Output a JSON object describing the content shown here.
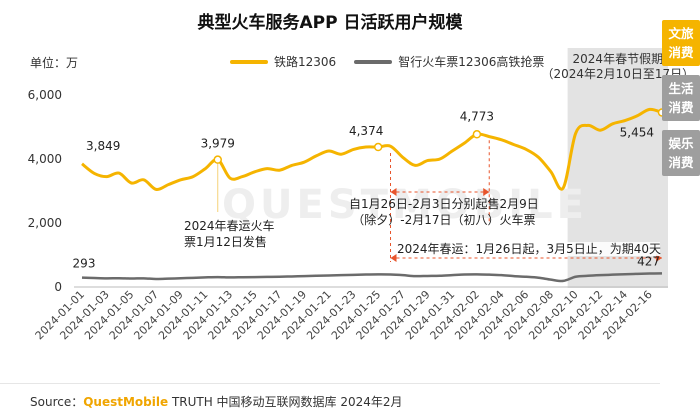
{
  "colors": {
    "rail": "#f5b400",
    "smart": "#6b6b6b",
    "tab_active": "#f5b400",
    "tab_inactive": "#9e9e9e",
    "annotation": "#e8542b",
    "shade": "#e3e3e3"
  },
  "header": {
    "title": "典型火车服务APP 日活跃用户规模",
    "unit": "单位：万"
  },
  "legend": [
    {
      "label": "铁路12306"
    },
    {
      "label": "智行火车票12306高铁抢票"
    }
  ],
  "side_tabs": [
    {
      "label_lines": [
        "文旅",
        "消费"
      ],
      "active": true
    },
    {
      "label_lines": [
        "生活",
        "消费"
      ],
      "active": false
    },
    {
      "label_lines": [
        "娱乐",
        "消费"
      ],
      "active": false
    }
  ],
  "chart_data": {
    "type": "line",
    "x": [
      "2024-01-01",
      "2024-01-02",
      "2024-01-03",
      "2024-01-04",
      "2024-01-05",
      "2024-01-06",
      "2024-01-07",
      "2024-01-08",
      "2024-01-09",
      "2024-01-10",
      "2024-01-11",
      "2024-01-12",
      "2024-01-13",
      "2024-01-14",
      "2024-01-15",
      "2024-01-16",
      "2024-01-17",
      "2024-01-18",
      "2024-01-19",
      "2024-01-20",
      "2024-01-21",
      "2024-01-22",
      "2024-01-23",
      "2024-01-24",
      "2024-01-25",
      "2024-01-26",
      "2024-01-27",
      "2024-01-28",
      "2024-01-29",
      "2024-01-30",
      "2024-01-31",
      "2024-02-01",
      "2024-02-02",
      "2024-02-03",
      "2024-02-04",
      "2024-02-05",
      "2024-02-06",
      "2024-02-07",
      "2024-02-08",
      "2024-02-09",
      "2024-02-10",
      "2024-02-11",
      "2024-02-12",
      "2024-02-13",
      "2024-02-14",
      "2024-02-15",
      "2024-02-16",
      "2024-02-17"
    ],
    "x_tick_labels": [
      "2024-01-01",
      "2024-01-03",
      "2024-01-05",
      "2024-01-07",
      "2024-01-09",
      "2024-01-11",
      "2024-01-13",
      "2024-01-15",
      "2024-01-17",
      "2024-01-19",
      "2024-01-21",
      "2024-01-23",
      "2024-01-25",
      "2024-01-27",
      "2024-01-29",
      "2024-01-31",
      "2024-02-02",
      "2024-02-04",
      "2024-02-06",
      "2024-02-08",
      "2024-02-10",
      "2024-02-12",
      "2024-02-14",
      "2024-02-16"
    ],
    "ylim": [
      0,
      6000
    ],
    "y_ticks": [
      0,
      2000,
      4000,
      6000
    ],
    "y_tick_labels": [
      "0",
      "2,000",
      "4,000",
      "6,000"
    ],
    "grid": false,
    "series": [
      {
        "name": "铁路12306",
        "values": [
          3849,
          3550,
          3450,
          3560,
          3250,
          3350,
          3050,
          3200,
          3350,
          3450,
          3700,
          3979,
          3400,
          3450,
          3600,
          3700,
          3650,
          3800,
          3900,
          4100,
          4250,
          4150,
          4300,
          4374,
          4374,
          4400,
          4050,
          3800,
          3950,
          4000,
          4250,
          4500,
          4773,
          4700,
          4600,
          4450,
          4300,
          4050,
          3600,
          3100,
          4800,
          5050,
          4900,
          5100,
          5200,
          5350,
          5550,
          5454
        ]
      },
      {
        "name": "智行火车票12306高铁抢票",
        "values": [
          293,
          280,
          270,
          275,
          265,
          270,
          250,
          260,
          275,
          285,
          300,
          310,
          300,
          305,
          310,
          315,
          320,
          330,
          340,
          350,
          360,
          370,
          380,
          390,
          395,
          390,
          370,
          340,
          345,
          350,
          370,
          390,
          395,
          385,
          370,
          340,
          320,
          290,
          230,
          190,
          320,
          350,
          370,
          385,
          400,
          410,
          420,
          427
        ]
      }
    ],
    "data_labels": [
      {
        "series": 0,
        "index": 0,
        "text": "3,849"
      },
      {
        "series": 0,
        "index": 11,
        "text": "3,979"
      },
      {
        "series": 0,
        "index": 24,
        "text": "4,374"
      },
      {
        "series": 0,
        "index": 32,
        "text": "4,773"
      },
      {
        "series": 0,
        "index": 47,
        "text": "5,454"
      },
      {
        "series": 1,
        "index": 0,
        "text": "293"
      },
      {
        "series": 1,
        "index": 47,
        "text": "427"
      }
    ],
    "shaded_period": {
      "from": "2024-02-10",
      "to": "2024-02-17",
      "label_lines": [
        "2024年春节假期",
        "（2024年2月10日至17日）"
      ]
    },
    "annotations": [
      {
        "at": "2024-01-12",
        "lines": [
          "2024年春运火车",
          "票1月12日发售"
        ]
      },
      {
        "from": "2024-01-26",
        "to": "2024-02-03",
        "lines": [
          "自1月26日-2月3日分别起售2月9日",
          "（除夕）-2月17日（初八）火车票"
        ]
      },
      {
        "from": "2024-01-26",
        "to": "2024-02-17",
        "lines": [
          "2024年春运：1月26日起，3月5日止，为期40天"
        ]
      }
    ]
  },
  "watermark": "QUESTMOBILE",
  "source": {
    "prefix": "Source：",
    "brand": "QuestMobile",
    "rest": " TRUTH 中国移动互联网数据库 2024年2月"
  }
}
